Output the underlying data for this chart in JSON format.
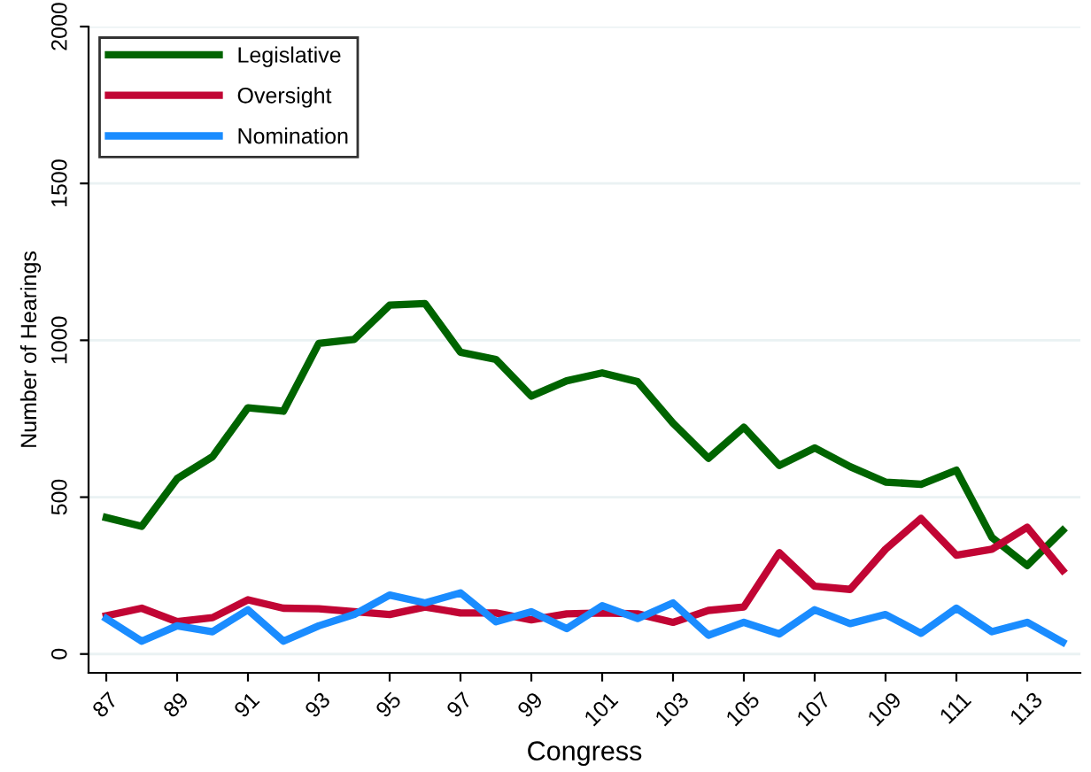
{
  "chart_data": {
    "type": "line",
    "xlabel": "Congress",
    "ylabel": "Number of Hearings",
    "x": [
      87,
      88,
      89,
      90,
      91,
      92,
      93,
      94,
      95,
      96,
      97,
      98,
      99,
      100,
      101,
      102,
      103,
      104,
      105,
      106,
      107,
      108,
      109,
      110,
      111,
      112,
      113,
      114
    ],
    "series": [
      {
        "name": "Legislative",
        "color": "#006400",
        "values": [
          435,
          407,
          559,
          629,
          785,
          774,
          990,
          1003,
          1112,
          1117,
          962,
          939,
          822,
          871,
          896,
          868,
          736,
          624,
          723,
          601,
          657,
          597,
          548,
          541,
          586,
          372,
          282,
          394
        ]
      },
      {
        "name": "Oversight",
        "color": "#c10534",
        "values": [
          122,
          146,
          103,
          116,
          173,
          146,
          144,
          135,
          126,
          150,
          131,
          131,
          109,
          128,
          131,
          128,
          101,
          139,
          150,
          323,
          216,
          206,
          334,
          432,
          315,
          334,
          404,
          267
        ]
      },
      {
        "name": "Nomination",
        "color": "#1a8cff",
        "values": [
          113,
          41,
          90,
          71,
          141,
          41,
          90,
          126,
          188,
          163,
          195,
          103,
          135,
          81,
          154,
          113,
          163,
          60,
          101,
          64,
          141,
          97,
          126,
          66,
          146,
          71,
          101,
          38
        ]
      }
    ],
    "xlim": [
      86.5,
      114.5
    ],
    "xticks": [
      87,
      89,
      91,
      93,
      95,
      97,
      99,
      101,
      103,
      105,
      107,
      109,
      111,
      113
    ],
    "ylim": [
      -60,
      2000
    ],
    "yticks": [
      0,
      500,
      1000,
      1500,
      2000
    ],
    "grid": "y",
    "legend": "top left",
    "line_style": "solid",
    "marker": "none"
  }
}
